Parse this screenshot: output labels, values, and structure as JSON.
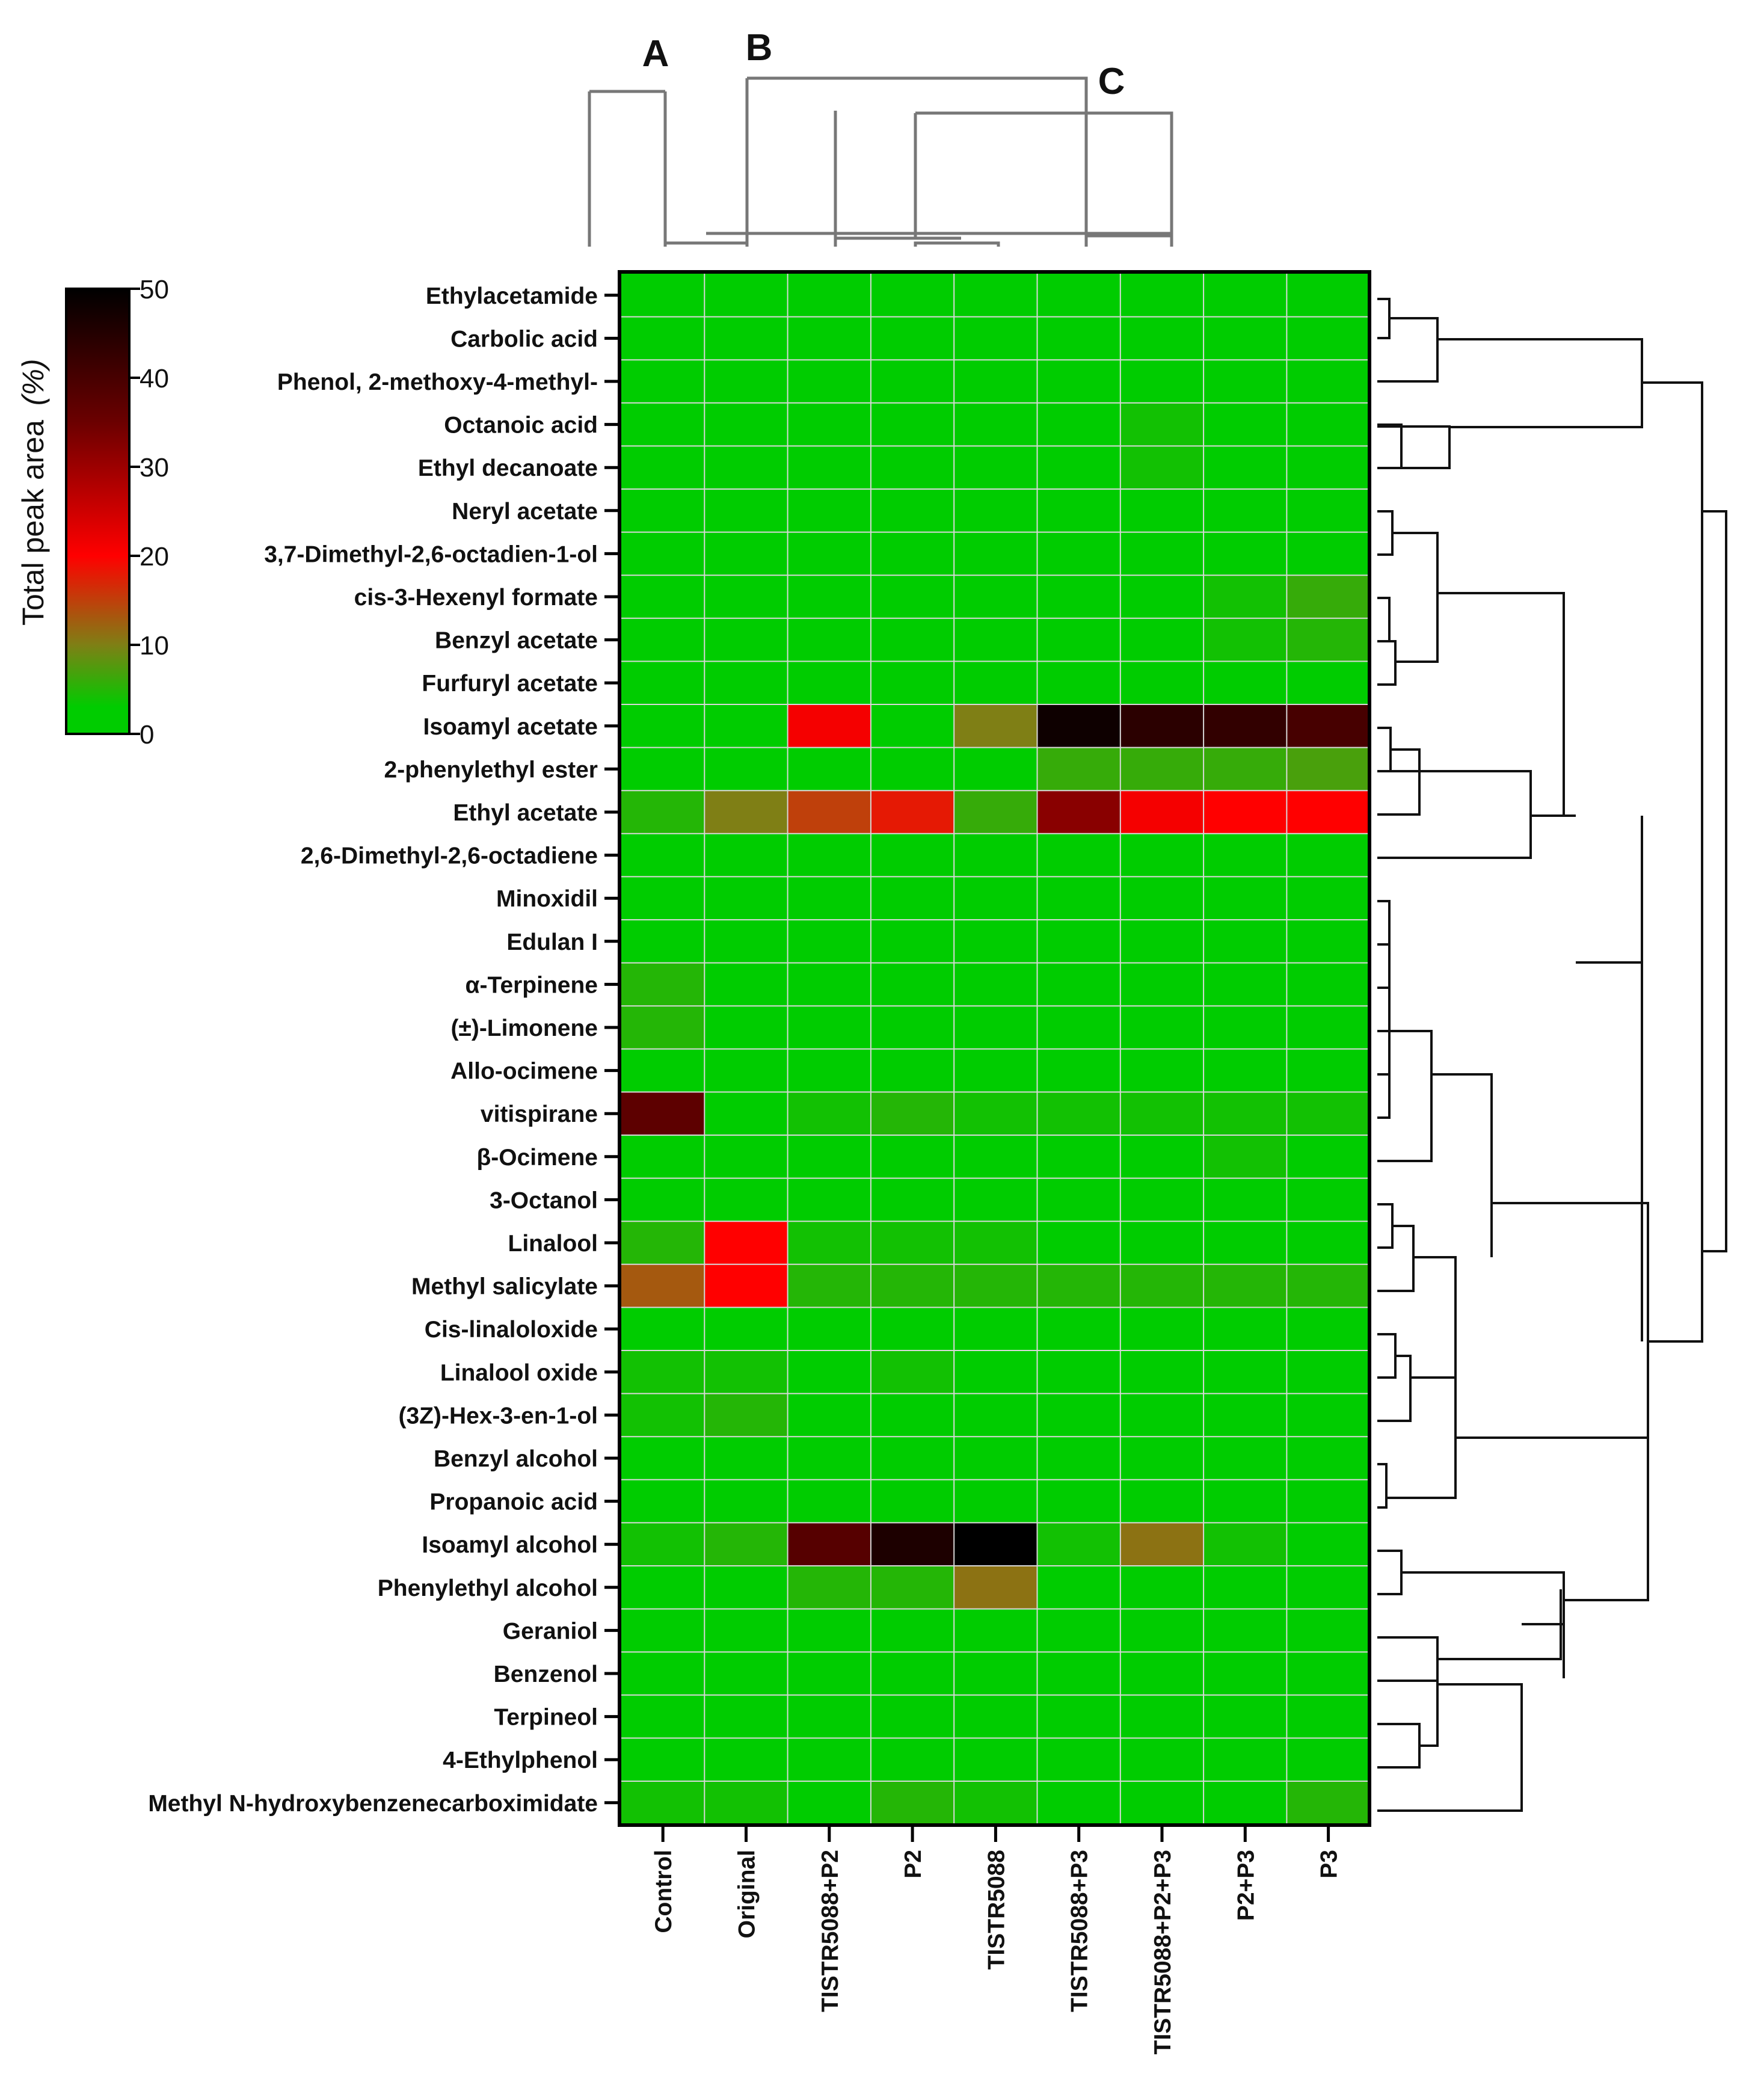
{
  "chart_data": {
    "type": "heatmap",
    "title": "",
    "colorbar": {
      "label": "Total peak area",
      "unit": "(%)",
      "ticks": [
        0,
        10,
        20,
        30,
        40,
        50
      ],
      "range": [
        0,
        50
      ],
      "stops": [
        {
          "value": 0,
          "color": "#00cc00"
        },
        {
          "value": 3,
          "color": "#00cc00"
        },
        {
          "value": 10,
          "color": "#7f7f15"
        },
        {
          "value": 20,
          "color": "#ff0000"
        },
        {
          "value": 35,
          "color": "#6b0000"
        },
        {
          "value": 50,
          "color": "#000000"
        }
      ]
    },
    "cluster_labels": [
      "A",
      "B",
      "C"
    ],
    "columns": [
      "Control",
      "Original",
      "TISTR5088+P2",
      "P2",
      "TISTR5088",
      "TISTR5088+P3",
      "TISTR5088+P2+P3",
      "P2+P3",
      "P3"
    ],
    "rows": [
      "Ethylacetamide",
      "Carbolic acid ",
      "Phenol, 2-methoxy-4-methyl-",
      "Octanoic acid",
      "Ethyl decanoate",
      "Neryl acetate",
      "3,7-Dimethyl-2,6-octadien-1-ol",
      "cis-3-Hexenyl formate",
      "Benzyl acetate",
      "Furfuryl acetate",
      "Isoamyl acetate",
      "2-phenylethyl ester",
      "Ethyl acetate",
      "2,6-Dimethyl-2,6-octadiene",
      "Minoxidil",
      "Edulan I",
      "α-Terpinene",
      "(±)-Limonene",
      "Allo-ocimene",
      "vitispirane",
      "β-Ocimene",
      "3-Octanol",
      "Linalool",
      "Methyl salicylate",
      "Cis-linaloloxide",
      "Linalool oxide",
      "(3Z)-Hex-3-en-1-ol",
      "Benzyl alcohol",
      "Propanoic acid",
      "Isoamyl alcohol",
      "Phenylethyl alcohol",
      "Geraniol",
      "Benzenol",
      "Terpineol",
      "4-Ethylphenol",
      "Methyl N-hydroxybenzenecarboximidate"
    ],
    "values": [
      [
        0,
        0,
        0,
        0,
        0,
        0,
        0,
        0,
        0
      ],
      [
        0,
        0,
        0,
        0,
        0,
        0,
        0,
        0,
        0
      ],
      [
        0,
        0,
        0,
        0,
        0,
        0,
        0,
        0,
        0
      ],
      [
        0,
        0,
        0,
        0,
        0,
        0,
        4,
        0,
        0
      ],
      [
        0,
        0,
        0,
        0,
        0,
        0,
        4,
        0,
        0
      ],
      [
        0,
        0,
        0,
        0,
        0,
        0,
        0,
        0,
        0
      ],
      [
        0,
        0,
        0,
        0,
        0,
        0,
        0,
        0,
        0
      ],
      [
        0,
        0,
        0,
        0,
        0,
        0,
        0,
        4,
        6
      ],
      [
        0,
        0,
        0,
        0,
        0,
        0,
        0,
        4,
        5
      ],
      [
        0,
        0,
        0,
        0,
        0,
        0,
        0,
        0,
        0
      ],
      [
        0,
        0,
        21,
        0,
        10,
        48,
        44,
        43,
        40
      ],
      [
        0,
        0,
        0,
        0,
        0,
        6,
        6,
        6,
        7
      ],
      [
        5,
        10,
        15,
        18,
        6,
        32,
        21,
        20,
        20
      ],
      [
        0,
        0,
        0,
        0,
        0,
        0,
        0,
        0,
        0
      ],
      [
        0,
        0,
        0,
        0,
        0,
        0,
        0,
        0,
        0
      ],
      [
        0,
        0,
        0,
        0,
        0,
        0,
        0,
        0,
        0
      ],
      [
        5,
        0,
        0,
        0,
        0,
        0,
        0,
        0,
        0
      ],
      [
        5,
        0,
        0,
        0,
        0,
        0,
        0,
        0,
        0
      ],
      [
        0,
        0,
        0,
        0,
        0,
        0,
        0,
        0,
        0
      ],
      [
        37,
        0,
        4,
        5,
        4,
        4,
        4,
        4,
        4
      ],
      [
        3,
        0,
        0,
        0,
        0,
        3,
        3,
        4,
        3
      ],
      [
        0,
        0,
        0,
        0,
        0,
        0,
        0,
        0,
        0
      ],
      [
        5,
        20,
        4,
        4,
        4,
        3,
        3,
        3,
        3
      ],
      [
        13,
        20,
        5,
        5,
        5,
        5,
        5,
        5,
        5
      ],
      [
        0,
        0,
        0,
        0,
        0,
        0,
        0,
        0,
        0
      ],
      [
        4,
        4,
        3,
        4,
        3,
        0,
        0,
        0,
        0
      ],
      [
        4,
        5,
        3,
        3,
        3,
        0,
        0,
        0,
        0
      ],
      [
        3,
        3,
        0,
        0,
        0,
        0,
        0,
        0,
        0
      ],
      [
        3,
        3,
        0,
        0,
        0,
        0,
        0,
        0,
        0
      ],
      [
        4,
        5,
        38,
        46,
        50,
        4,
        11,
        4,
        0
      ],
      [
        0,
        3,
        5,
        5,
        11,
        0,
        0,
        0,
        0
      ],
      [
        0,
        0,
        0,
        0,
        0,
        0,
        0,
        0,
        0
      ],
      [
        0,
        0,
        0,
        0,
        0,
        0,
        0,
        0,
        0
      ],
      [
        3,
        3,
        3,
        3,
        3,
        0,
        0,
        0,
        0
      ],
      [
        0,
        0,
        0,
        0,
        0,
        0,
        0,
        0,
        0
      ],
      [
        4,
        4,
        3,
        5,
        4,
        3,
        3,
        3,
        5
      ]
    ]
  }
}
